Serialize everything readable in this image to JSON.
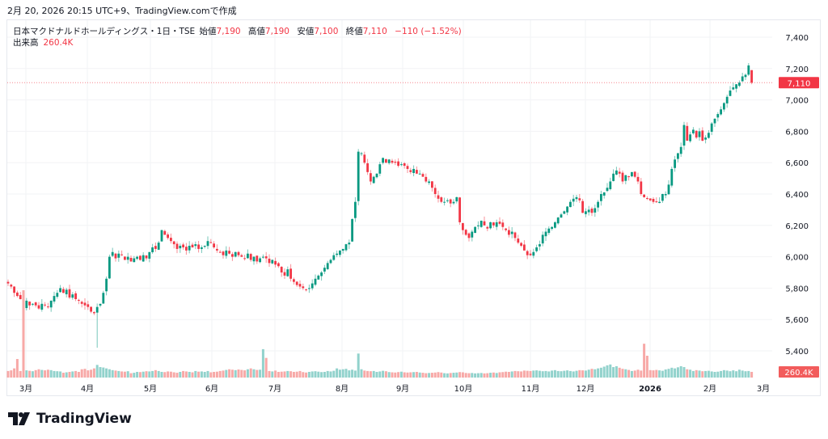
{
  "caption": "2月 20, 2026 20:15 UTC+9、TradingView.comで作成",
  "legend": {
    "symbol": "日本マクドナルドホールディングス・1日・TSE",
    "open_label": "始値",
    "open": "7,190",
    "high_label": "高値",
    "high": "7,190",
    "low_label": "安値",
    "low": "7,100",
    "close_label": "終値",
    "close": "7,110",
    "change": "−110 (−1.52%)",
    "volume_label": "出来高",
    "volume": "260.4K"
  },
  "brand": "TradingView",
  "colors": {
    "up": "#089981",
    "down": "#f23645",
    "up_volume": "#92d2cc",
    "down_volume": "#f7a9a7"
  },
  "chart_data": {
    "type": "candlestick",
    "ylim": [
      5300,
      7450
    ],
    "yticks": [
      "5,400",
      "5,600",
      "5,800",
      "6,000",
      "6,200",
      "6,400",
      "6,600",
      "6,800",
      "7,000",
      "7,200",
      "7,400"
    ],
    "ytick_values": [
      5400,
      5600,
      5800,
      6000,
      6200,
      6400,
      6600,
      6800,
      7000,
      7200,
      7400
    ],
    "xticks": [
      "3月",
      "4月",
      "5月",
      "6月",
      "7月",
      "8月",
      "9月",
      "10月",
      "11月",
      "12月",
      "2026",
      "2月",
      "3月"
    ],
    "last_price_label": "7,110",
    "last_volume_label": "260.4K",
    "last_candle": {
      "open": 7190,
      "high": 7190,
      "low": 7100,
      "close": 7110
    },
    "notable_low_wicks": [
      {
        "index": 29,
        "low": 5420
      }
    ],
    "closes": [
      5830,
      5810,
      5770,
      5750,
      5730,
      5680,
      5720,
      5690,
      5700,
      5690,
      5670,
      5700,
      5690,
      5680,
      5720,
      5750,
      5770,
      5800,
      5770,
      5790,
      5740,
      5760,
      5730,
      5720,
      5700,
      5690,
      5680,
      5650,
      5640,
      5680,
      5700,
      5770,
      5860,
      6000,
      6030,
      5990,
      6020,
      6010,
      5980,
      6000,
      5970,
      5990,
      6000,
      5980,
      6010,
      5990,
      6030,
      6060,
      6050,
      6090,
      6170,
      6140,
      6120,
      6100,
      6080,
      6050,
      6070,
      6060,
      6040,
      6070,
      6060,
      6080,
      6050,
      6060,
      6070,
      6100,
      6090,
      6060,
      6040,
      6030,
      6010,
      6040,
      6020,
      6000,
      6030,
      6010,
      6000,
      5990,
      6020,
      5980,
      6000,
      5970,
      5990,
      6000,
      5990,
      5960,
      5980,
      5950,
      5940,
      5900,
      5880,
      5920,
      5860,
      5840,
      5820,
      5810,
      5800,
      5790,
      5800,
      5830,
      5860,
      5880,
      5900,
      5930,
      5960,
      5980,
      6010,
      6020,
      6040,
      6050,
      6080,
      6090,
      6240,
      6350,
      6670,
      6660,
      6600,
      6540,
      6480,
      6510,
      6530,
      6590,
      6630,
      6600,
      6620,
      6600,
      6600,
      6580,
      6590,
      6580,
      6560,
      6540,
      6560,
      6530,
      6530,
      6510,
      6480,
      6480,
      6440,
      6400,
      6370,
      6350,
      6350,
      6360,
      6340,
      6350,
      6380,
      6220,
      6170,
      6140,
      6120,
      6160,
      6190,
      6200,
      6230,
      6200,
      6180,
      6220,
      6200,
      6220,
      6210,
      6190,
      6170,
      6140,
      6160,
      6120,
      6090,
      6070,
      6040,
      6010,
      6010,
      6030,
      6060,
      6080,
      6140,
      6160,
      6180,
      6190,
      6220,
      6250,
      6270,
      6290,
      6320,
      6350,
      6370,
      6380,
      6360,
      6280,
      6290,
      6300,
      6280,
      6310,
      6350,
      6400,
      6410,
      6440,
      6480,
      6530,
      6550,
      6530,
      6480,
      6520,
      6510,
      6540,
      6510,
      6480,
      6400,
      6380,
      6370,
      6360,
      6350,
      6350,
      6350,
      6400,
      6400,
      6460,
      6560,
      6620,
      6660,
      6700,
      6840,
      6740,
      6780,
      6810,
      6760,
      6800,
      6740,
      6760,
      6790,
      6850,
      6880,
      6910,
      6940,
      6980,
      7020,
      7060,
      7080,
      7100,
      7110,
      7150,
      7160,
      7220,
      7110
    ],
    "volumes_k": [
      300,
      330,
      420,
      850,
      300,
      4000,
      330,
      310,
      290,
      340,
      380,
      350,
      330,
      360,
      340,
      300,
      290,
      280,
      220,
      240,
      260,
      280,
      300,
      260,
      380,
      400,
      330,
      360,
      420,
      580,
      480,
      460,
      420,
      380,
      340,
      320,
      300,
      280,
      270,
      290,
      200,
      220,
      260,
      250,
      270,
      290,
      280,
      300,
      340,
      300,
      260,
      250,
      280,
      270,
      240,
      220,
      260,
      300,
      280,
      260,
      240,
      300,
      270,
      280,
      260,
      300,
      240,
      260,
      270,
      300,
      320,
      350,
      380,
      360,
      340,
      370,
      350,
      330,
      380,
      420,
      380,
      350,
      360,
      1300,
      900,
      300,
      280,
      320,
      260,
      270,
      280,
      300,
      290,
      260,
      270,
      300,
      250,
      230,
      260,
      280,
      290,
      270,
      250,
      260,
      300,
      280,
      310,
      420,
      360,
      380,
      400,
      330,
      360,
      320,
      1100,
      380,
      320,
      300,
      290,
      300,
      260,
      280,
      310,
      290,
      250,
      240,
      230,
      250,
      270,
      240,
      230,
      240,
      250,
      260,
      230,
      220,
      200,
      210,
      220,
      230,
      250,
      230,
      200,
      190,
      210,
      220,
      230,
      250,
      240,
      210,
      200,
      210,
      190,
      200,
      210,
      190,
      200,
      220,
      230,
      210,
      240,
      250,
      270,
      260,
      280,
      300,
      290,
      280,
      320,
      310,
      300,
      320,
      330,
      310,
      290,
      300,
      280,
      320,
      340,
      300,
      290,
      310,
      330,
      300,
      280,
      310,
      340,
      330,
      320,
      360,
      400,
      380,
      420,
      450,
      500,
      560,
      600,
      480,
      520,
      450,
      400,
      380,
      350,
      300,
      320,
      360,
      320,
      1550,
      1000,
      340,
      330,
      350,
      330,
      310,
      370,
      400,
      450,
      420,
      470,
      520,
      480,
      380,
      360,
      300,
      340,
      320,
      290,
      300,
      310,
      280,
      260,
      270,
      300,
      340,
      320,
      290,
      330,
      290,
      360,
      320,
      290,
      300,
      260.4
    ]
  }
}
